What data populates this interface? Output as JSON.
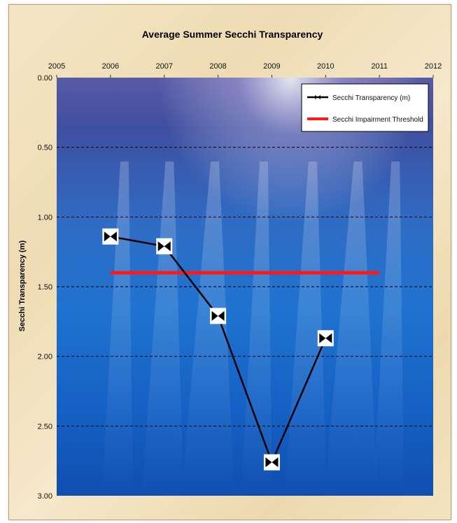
{
  "chart_data": {
    "type": "line",
    "title": "Average Summer Secchi Transparency",
    "xlabel": "",
    "ylabel": "Secchi Transparency (m)",
    "x_axis_position": "top",
    "xlim": [
      2005,
      2012
    ],
    "x_ticks": [
      "2005",
      "2006",
      "2007",
      "2008",
      "2009",
      "2010",
      "2011",
      "2012"
    ],
    "ylim": [
      0,
      3
    ],
    "y_inverted": true,
    "y_ticks": [
      "0.00",
      "0.50",
      "1.00",
      "1.50",
      "2.00",
      "2.50",
      "3.00"
    ],
    "grid": "horizontal dashed",
    "legend_position": "top-right",
    "series": [
      {
        "name": "Secchi Transparency (m)",
        "color": "#000000",
        "marker": "bowtie",
        "points": [
          {
            "x": 2006,
            "y": 1.14
          },
          {
            "x": 2007,
            "y": 1.21
          },
          {
            "x": 2008,
            "y": 1.71
          },
          {
            "x": 2009,
            "y": 2.76
          },
          {
            "x": 2010,
            "y": 1.87
          }
        ]
      },
      {
        "name": "Secchi Impairment Threshold",
        "color": "#ff1a1a",
        "points": [
          {
            "x": 2006,
            "y": 1.4
          },
          {
            "x": 2011,
            "y": 1.4
          }
        ]
      }
    ]
  }
}
